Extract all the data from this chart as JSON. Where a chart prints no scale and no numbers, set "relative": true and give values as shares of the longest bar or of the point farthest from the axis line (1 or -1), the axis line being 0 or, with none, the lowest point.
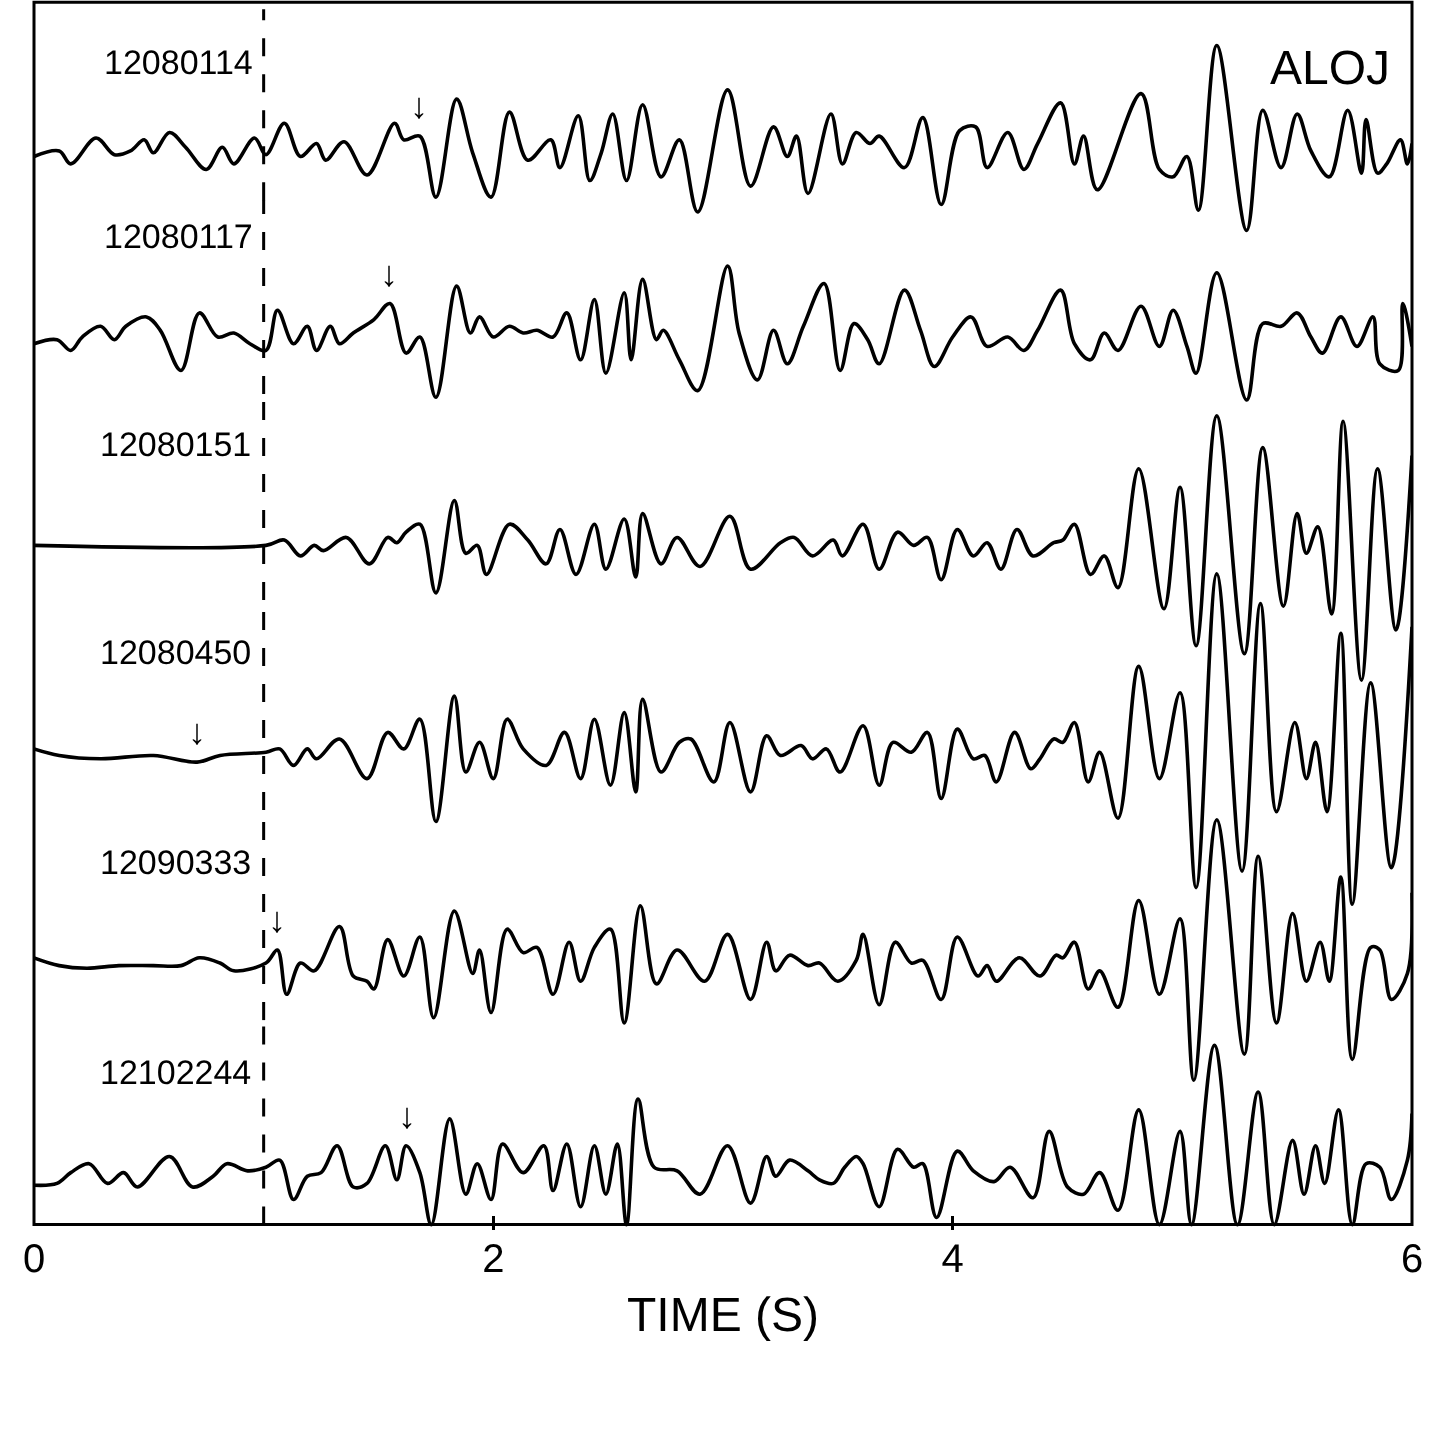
{
  "chart_data": [
    {
      "type": "line",
      "relative": true,
      "xlim": [
        0,
        6
      ],
      "xticks": [
        0,
        2,
        4,
        6
      ],
      "tick_labels": false,
      "ref_lines": [
        {
          "axis": "x",
          "value": 1,
          "line_style": "dashed"
        }
      ],
      "annotations": [
        "ALOJ",
        {
          "text": "↓",
          "x": 1.68,
          "y": 0.51
        }
      ],
      "x": [
        0,
        0.11,
        0.16,
        0.27,
        0.35,
        0.42,
        0.48,
        0.52,
        0.59,
        0.66,
        0.75,
        0.82,
        0.87,
        0.96,
        1.01,
        1.09,
        1.16,
        1.23,
        1.27,
        1.35,
        1.45,
        1.57,
        1.61,
        1.68,
        1.75,
        1.84,
        1.91,
        1.99,
        2.07,
        2.15,
        2.25,
        2.29,
        2.37,
        2.42,
        2.47,
        2.52,
        2.58,
        2.65,
        2.73,
        2.81,
        2.89,
        3.02,
        3.12,
        3.22,
        3.28,
        3.32,
        3.37,
        3.47,
        3.52,
        3.58,
        3.64,
        3.68,
        3.79,
        3.87,
        3.95,
        4.03,
        4.1,
        4.15,
        4.24,
        4.31,
        4.37,
        4.47,
        4.53,
        4.57,
        4.63,
        4.82,
        4.9,
        4.96,
        5.02,
        5.07,
        5.15,
        5.28,
        5.35,
        5.43,
        5.5,
        5.56,
        5.64,
        5.72,
        5.78,
        5.8,
        5.85,
        5.89,
        5.95,
        5.98,
        6.0
      ],
      "series": [
        {
          "name": "12080114",
          "color": "#000000",
          "values": [
            0.4,
            0.43,
            0.36,
            0.5,
            0.41,
            0.43,
            0.49,
            0.42,
            0.53,
            0.45,
            0.33,
            0.45,
            0.36,
            0.5,
            0.41,
            0.58,
            0.4,
            0.47,
            0.38,
            0.48,
            0.3,
            0.58,
            0.49,
            0.51,
            0.18,
            0.71,
            0.42,
            0.18,
            0.64,
            0.38,
            0.49,
            0.34,
            0.62,
            0.27,
            0.42,
            0.63,
            0.27,
            0.68,
            0.29,
            0.49,
            0.1,
            0.76,
            0.24,
            0.56,
            0.4,
            0.51,
            0.2,
            0.63,
            0.36,
            0.53,
            0.47,
            0.51,
            0.34,
            0.61,
            0.14,
            0.54,
            0.56,
            0.34,
            0.53,
            0.33,
            0.47,
            0.69,
            0.36,
            0.51,
            0.22,
            0.74,
            0.33,
            0.29,
            0.4,
            0.11,
            1.0,
            0.0,
            0.65,
            0.34,
            0.63,
            0.43,
            0.29,
            0.65,
            0.31,
            0.6,
            0.31,
            0.36,
            0.49,
            0.36,
            0.47
          ]
        }
      ]
    },
    {
      "type": "line",
      "relative": true,
      "xlim": [
        0,
        6
      ],
      "xticks": [
        0,
        2,
        4,
        6
      ],
      "tick_labels": false,
      "ref_lines": [
        {
          "axis": "x",
          "value": 1,
          "line_style": "dashed"
        }
      ],
      "annotations": [
        {
          "text": "↓",
          "x": 1.55,
          "y": 0.72
        }
      ],
      "x": [
        0,
        0.1,
        0.16,
        0.21,
        0.29,
        0.35,
        0.4,
        0.49,
        0.55,
        0.64,
        0.72,
        0.8,
        0.87,
        0.94,
        1.01,
        1.06,
        1.13,
        1.19,
        1.23,
        1.29,
        1.33,
        1.39,
        1.48,
        1.55,
        1.62,
        1.68,
        1.75,
        1.84,
        1.9,
        1.94,
        2.0,
        2.07,
        2.13,
        2.19,
        2.26,
        2.32,
        2.38,
        2.44,
        2.49,
        2.57,
        2.6,
        2.65,
        2.71,
        2.74,
        2.81,
        2.89,
        3.02,
        3.07,
        3.15,
        3.22,
        3.28,
        3.35,
        3.44,
        3.51,
        3.57,
        3.63,
        3.68,
        3.79,
        3.86,
        3.92,
        4.0,
        4.08,
        4.15,
        4.24,
        4.31,
        4.37,
        4.47,
        4.53,
        4.6,
        4.66,
        4.72,
        4.82,
        4.9,
        4.96,
        5.02,
        5.06,
        5.15,
        5.28,
        5.35,
        5.43,
        5.5,
        5.56,
        5.61,
        5.69,
        5.76,
        5.83,
        5.86,
        5.94,
        5.96,
        6.0
      ],
      "series": [
        {
          "name": "12080117",
          "color": "#000000",
          "values": [
            0.42,
            0.45,
            0.37,
            0.47,
            0.55,
            0.45,
            0.55,
            0.62,
            0.52,
            0.22,
            0.65,
            0.47,
            0.5,
            0.42,
            0.37,
            0.67,
            0.42,
            0.55,
            0.37,
            0.55,
            0.42,
            0.5,
            0.6,
            0.72,
            0.35,
            0.47,
            0.02,
            0.85,
            0.5,
            0.62,
            0.47,
            0.55,
            0.5,
            0.52,
            0.47,
            0.65,
            0.3,
            0.75,
            0.2,
            0.8,
            0.3,
            0.9,
            0.45,
            0.52,
            0.3,
            0.07,
            1.0,
            0.5,
            0.15,
            0.52,
            0.27,
            0.55,
            0.87,
            0.22,
            0.57,
            0.45,
            0.27,
            0.82,
            0.52,
            0.25,
            0.47,
            0.62,
            0.4,
            0.47,
            0.37,
            0.52,
            0.82,
            0.42,
            0.3,
            0.5,
            0.37,
            0.7,
            0.4,
            0.67,
            0.4,
            0.2,
            0.95,
            0.0,
            0.57,
            0.55,
            0.65,
            0.47,
            0.35,
            0.62,
            0.4,
            0.62,
            0.27,
            0.22,
            0.72,
            0.4
          ]
        }
      ]
    },
    {
      "type": "line",
      "relative": true,
      "xlim": [
        0,
        6
      ],
      "xticks": [
        0,
        2,
        4,
        6
      ],
      "tick_labels": false,
      "ref_lines": [
        {
          "axis": "x",
          "value": 1,
          "line_style": "dashed"
        }
      ],
      "x": [
        0,
        1.01,
        1.09,
        1.16,
        1.22,
        1.26,
        1.36,
        1.46,
        1.54,
        1.58,
        1.62,
        1.68,
        1.75,
        1.83,
        1.88,
        1.93,
        1.97,
        2.07,
        2.15,
        2.23,
        2.29,
        2.36,
        2.44,
        2.49,
        2.57,
        2.62,
        2.65,
        2.73,
        2.8,
        2.9,
        3.03,
        3.12,
        3.25,
        3.31,
        3.39,
        3.48,
        3.52,
        3.61,
        3.68,
        3.76,
        3.83,
        3.89,
        3.95,
        4.02,
        4.09,
        4.15,
        4.21,
        4.28,
        4.35,
        4.44,
        4.48,
        4.53,
        4.6,
        4.66,
        4.72,
        4.81,
        4.92,
        4.99,
        5.06,
        5.15,
        5.27,
        5.35,
        5.44,
        5.5,
        5.54,
        5.59,
        5.65,
        5.7,
        5.78,
        5.85,
        5.93,
        6.0
      ],
      "series": [
        {
          "name": "12080151",
          "color": "#000000",
          "values": [
            0.51,
            0.51,
            0.53,
            0.47,
            0.51,
            0.49,
            0.54,
            0.44,
            0.54,
            0.52,
            0.56,
            0.59,
            0.33,
            0.68,
            0.48,
            0.51,
            0.4,
            0.59,
            0.53,
            0.44,
            0.57,
            0.4,
            0.59,
            0.42,
            0.61,
            0.39,
            0.63,
            0.44,
            0.54,
            0.43,
            0.62,
            0.42,
            0.52,
            0.54,
            0.47,
            0.53,
            0.47,
            0.59,
            0.42,
            0.56,
            0.51,
            0.54,
            0.38,
            0.57,
            0.47,
            0.52,
            0.42,
            0.57,
            0.47,
            0.52,
            0.53,
            0.59,
            0.4,
            0.47,
            0.35,
            0.8,
            0.27,
            0.73,
            0.13,
            1.0,
            0.1,
            0.88,
            0.28,
            0.63,
            0.48,
            0.58,
            0.25,
            0.98,
            0.0,
            0.8,
            0.19,
            0.85
          ]
        }
      ]
    },
    {
      "type": "line",
      "relative": true,
      "xlim": [
        0,
        6
      ],
      "xticks": [
        0,
        2,
        4,
        6
      ],
      "tick_labels": false,
      "ref_lines": [
        {
          "axis": "x",
          "value": 1,
          "line_style": "dashed"
        }
      ],
      "annotations": [
        {
          "text": "↓",
          "x": 0.71,
          "y": 0.43
        }
      ],
      "x": [
        0,
        0.11,
        0.29,
        0.52,
        0.71,
        0.81,
        1.01,
        1.07,
        1.13,
        1.19,
        1.23,
        1.33,
        1.45,
        1.54,
        1.61,
        1.68,
        1.75,
        1.83,
        1.88,
        1.94,
        2.0,
        2.06,
        2.13,
        2.23,
        2.31,
        2.38,
        2.44,
        2.51,
        2.57,
        2.62,
        2.65,
        2.73,
        2.81,
        2.86,
        2.96,
        3.03,
        3.12,
        3.19,
        3.25,
        3.34,
        3.39,
        3.45,
        3.51,
        3.61,
        3.68,
        3.74,
        3.82,
        3.89,
        3.95,
        4.02,
        4.09,
        4.14,
        4.19,
        4.27,
        4.34,
        4.38,
        4.44,
        4.48,
        4.53,
        4.59,
        4.64,
        4.72,
        4.81,
        4.9,
        4.99,
        5.06,
        5.15,
        5.26,
        5.34,
        5.41,
        5.49,
        5.54,
        5.58,
        5.63,
        5.69,
        5.74,
        5.82,
        5.91,
        6.0
      ],
      "series": [
        {
          "name": "12080450",
          "color": "#000000",
          "values": [
            0.47,
            0.45,
            0.44,
            0.45,
            0.43,
            0.45,
            0.46,
            0.47,
            0.42,
            0.47,
            0.44,
            0.5,
            0.38,
            0.52,
            0.47,
            0.56,
            0.25,
            0.63,
            0.4,
            0.49,
            0.38,
            0.56,
            0.47,
            0.42,
            0.52,
            0.38,
            0.56,
            0.36,
            0.58,
            0.34,
            0.62,
            0.4,
            0.49,
            0.5,
            0.37,
            0.55,
            0.34,
            0.51,
            0.45,
            0.48,
            0.44,
            0.47,
            0.4,
            0.54,
            0.36,
            0.49,
            0.46,
            0.52,
            0.32,
            0.53,
            0.44,
            0.45,
            0.37,
            0.52,
            0.41,
            0.44,
            0.5,
            0.49,
            0.55,
            0.37,
            0.46,
            0.26,
            0.72,
            0.38,
            0.64,
            0.05,
            1.0,
            0.1,
            0.91,
            0.28,
            0.55,
            0.38,
            0.49,
            0.28,
            0.82,
            0.0,
            0.67,
            0.11,
            0.84
          ]
        }
      ]
    },
    {
      "type": "line",
      "relative": true,
      "xlim": [
        0,
        6
      ],
      "xticks": [
        0,
        2,
        4,
        6
      ],
      "tick_labels": false,
      "ref_lines": [
        {
          "axis": "x",
          "value": 1,
          "line_style": "dashed"
        }
      ],
      "annotations": [
        {
          "text": "↓",
          "x": 1.06,
          "y": 0.5
        }
      ],
      "x": [
        0,
        0.11,
        0.23,
        0.37,
        0.52,
        0.64,
        0.72,
        0.81,
        0.87,
        1.01,
        1.06,
        1.1,
        1.16,
        1.22,
        1.33,
        1.39,
        1.45,
        1.48,
        1.54,
        1.61,
        1.68,
        1.74,
        1.83,
        1.91,
        1.94,
        1.99,
        2.06,
        2.13,
        2.19,
        2.26,
        2.33,
        2.38,
        2.44,
        2.51,
        2.57,
        2.64,
        2.71,
        2.8,
        2.92,
        3.02,
        3.12,
        3.19,
        3.23,
        3.29,
        3.37,
        3.42,
        3.5,
        3.58,
        3.61,
        3.68,
        3.75,
        3.82,
        3.87,
        3.95,
        4.02,
        4.11,
        4.15,
        4.19,
        4.29,
        4.38,
        4.45,
        4.48,
        4.53,
        4.59,
        4.64,
        4.72,
        4.81,
        4.9,
        4.99,
        5.05,
        5.15,
        5.27,
        5.33,
        5.41,
        5.48,
        5.54,
        5.6,
        5.64,
        5.69,
        5.74,
        5.82,
        5.86,
        5.91,
        5.98,
        6.0
      ],
      "series": [
        {
          "name": "12090333",
          "color": "#000000",
          "values": [
            0.47,
            0.44,
            0.43,
            0.44,
            0.44,
            0.44,
            0.47,
            0.45,
            0.42,
            0.45,
            0.5,
            0.33,
            0.45,
            0.42,
            0.59,
            0.4,
            0.38,
            0.35,
            0.54,
            0.4,
            0.55,
            0.24,
            0.65,
            0.41,
            0.5,
            0.26,
            0.58,
            0.49,
            0.51,
            0.33,
            0.53,
            0.38,
            0.51,
            0.58,
            0.22,
            0.67,
            0.37,
            0.5,
            0.38,
            0.56,
            0.31,
            0.53,
            0.42,
            0.48,
            0.44,
            0.45,
            0.38,
            0.46,
            0.56,
            0.29,
            0.53,
            0.45,
            0.46,
            0.31,
            0.55,
            0.4,
            0.44,
            0.38,
            0.47,
            0.4,
            0.48,
            0.47,
            0.53,
            0.35,
            0.42,
            0.28,
            0.69,
            0.33,
            0.62,
            0.0,
            1.0,
            0.1,
            0.86,
            0.22,
            0.64,
            0.38,
            0.53,
            0.38,
            0.78,
            0.08,
            0.51,
            0.5,
            0.31,
            0.41,
            0.72
          ]
        }
      ]
    },
    {
      "type": "line",
      "relative": true,
      "xlim": [
        0,
        6
      ],
      "xticks": [
        0,
        2,
        4,
        6
      ],
      "tick_labels": "x",
      "xlabel": "TIME (S)",
      "ref_lines": [
        {
          "axis": "x",
          "value": 1,
          "line_style": "dashed"
        }
      ],
      "annotations": [
        {
          "text": "↓",
          "x": 1.62,
          "y": 0.44
        }
      ],
      "x": [
        0,
        0.1,
        0.16,
        0.24,
        0.32,
        0.39,
        0.45,
        0.59,
        0.69,
        0.78,
        0.84,
        0.93,
        1.01,
        1.07,
        1.13,
        1.19,
        1.25,
        1.32,
        1.39,
        1.45,
        1.53,
        1.58,
        1.62,
        1.68,
        1.73,
        1.81,
        1.88,
        1.93,
        1.99,
        2.04,
        2.13,
        2.22,
        2.26,
        2.32,
        2.38,
        2.44,
        2.49,
        2.54,
        2.58,
        2.63,
        2.7,
        2.8,
        2.9,
        3.02,
        3.12,
        3.19,
        3.23,
        3.29,
        3.37,
        3.42,
        3.48,
        3.53,
        3.58,
        3.61,
        3.68,
        3.76,
        3.83,
        3.87,
        3.93,
        4.02,
        4.09,
        4.18,
        4.25,
        4.35,
        4.42,
        4.5,
        4.57,
        4.64,
        4.72,
        4.81,
        4.9,
        4.99,
        5.04,
        5.14,
        5.24,
        5.33,
        5.4,
        5.48,
        5.53,
        5.58,
        5.62,
        5.68,
        5.74,
        5.8,
        5.86,
        5.91,
        5.98,
        6.0
      ],
      "series": [
        {
          "name": "12102244",
          "color": "#000000",
          "values": [
            0.22,
            0.23,
            0.29,
            0.34,
            0.23,
            0.29,
            0.21,
            0.38,
            0.21,
            0.27,
            0.34,
            0.3,
            0.32,
            0.36,
            0.14,
            0.27,
            0.29,
            0.44,
            0.21,
            0.23,
            0.44,
            0.25,
            0.44,
            0.29,
            0.0,
            0.59,
            0.17,
            0.34,
            0.14,
            0.45,
            0.29,
            0.44,
            0.19,
            0.45,
            0.1,
            0.44,
            0.17,
            0.45,
            0.0,
            0.7,
            0.32,
            0.3,
            0.17,
            0.44,
            0.12,
            0.38,
            0.27,
            0.36,
            0.3,
            0.25,
            0.23,
            0.32,
            0.38,
            0.34,
            0.1,
            0.42,
            0.32,
            0.34,
            0.04,
            0.41,
            0.3,
            0.24,
            0.32,
            0.15,
            0.52,
            0.21,
            0.17,
            0.29,
            0.08,
            0.64,
            0.0,
            0.52,
            0.0,
            1.0,
            0.0,
            0.74,
            0.0,
            0.47,
            0.17,
            0.44,
            0.23,
            0.64,
            0.0,
            0.34,
            0.32,
            0.14,
            0.36,
            0.62
          ]
        }
      ]
    }
  ]
}
